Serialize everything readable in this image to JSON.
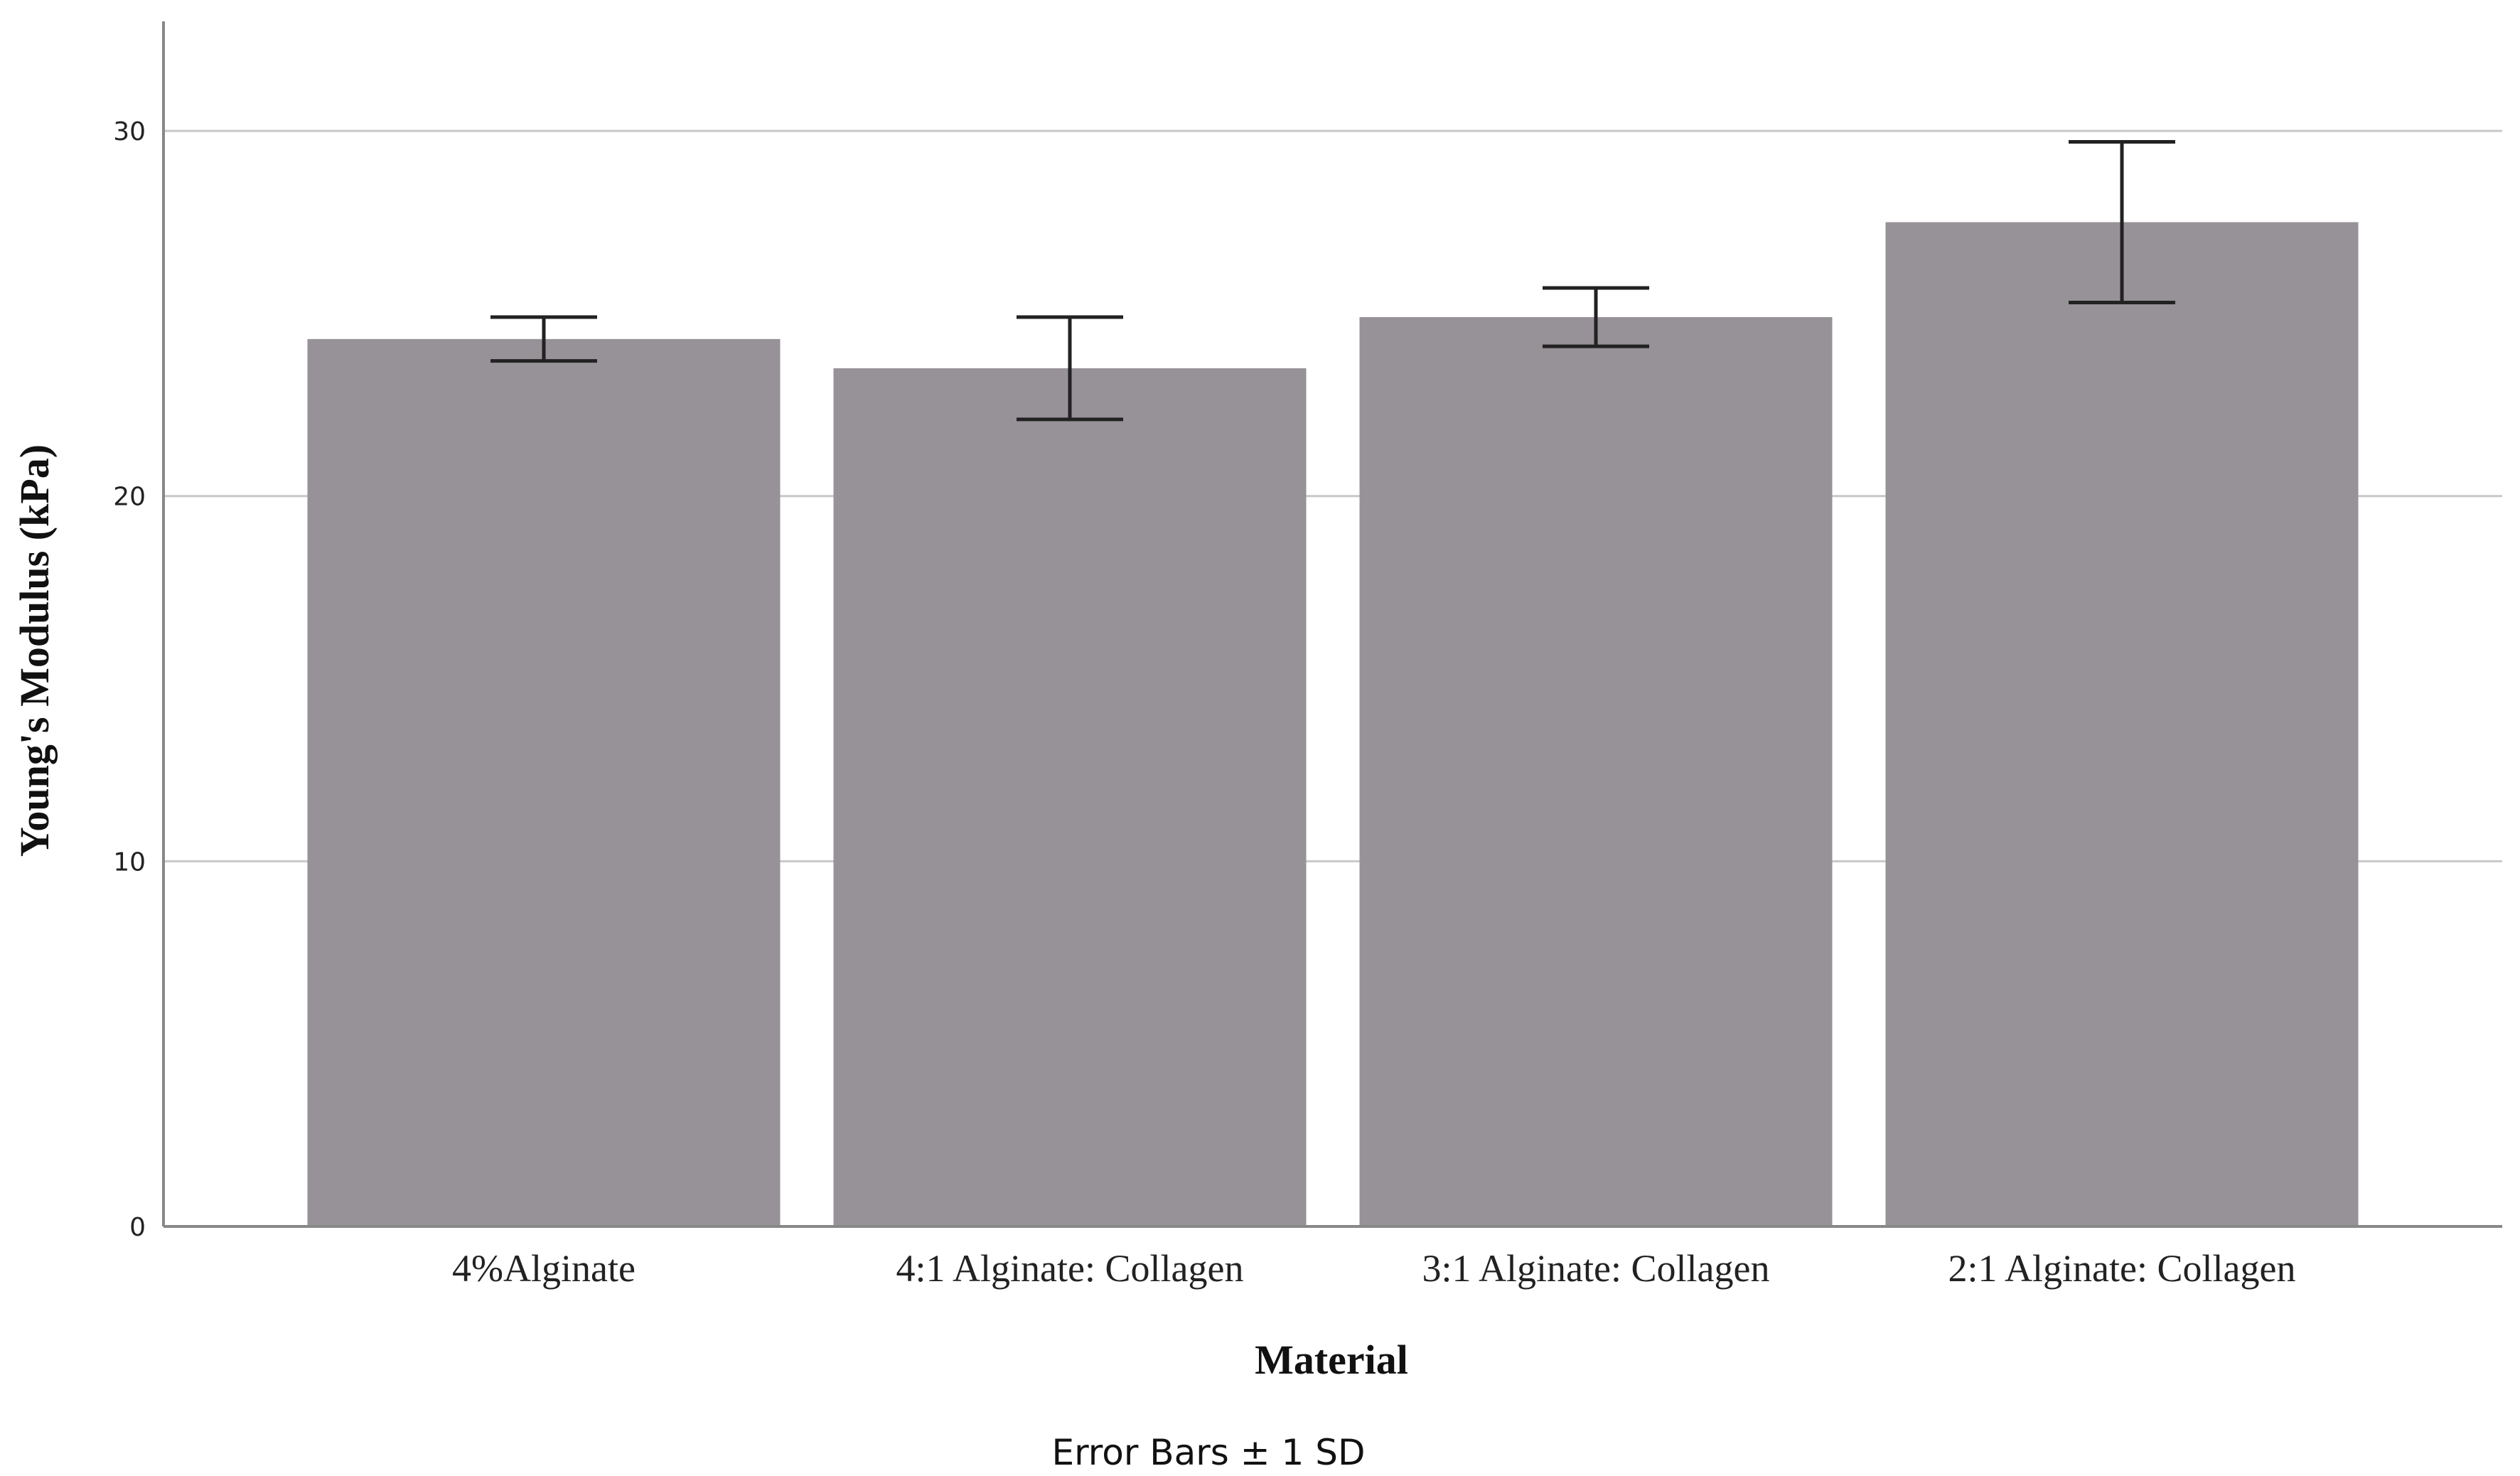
{
  "chart_data": {
    "type": "bar",
    "categories": [
      "4%Alginate",
      "4:1 Alginate: Collagen",
      "3:1 Alginate: Collagen",
      "2:1 Alginate: Collagen"
    ],
    "series": [
      {
        "values": [
          24.3,
          23.5,
          24.9,
          27.5
        ],
        "error_sd": [
          0.6,
          1.4,
          0.8,
          2.2
        ]
      }
    ],
    "xlabel": "Material",
    "ylabel": "Young's Modulus (kPa)",
    "ylim": [
      0,
      33
    ],
    "yticks": [
      0,
      10,
      20,
      30
    ],
    "grid": true,
    "footnote": "Error Bars ± 1 SD",
    "colors": {
      "bar": "#979297",
      "grid": "#c8c8c8",
      "axis": "#888888",
      "error_bar": "#222222"
    }
  }
}
